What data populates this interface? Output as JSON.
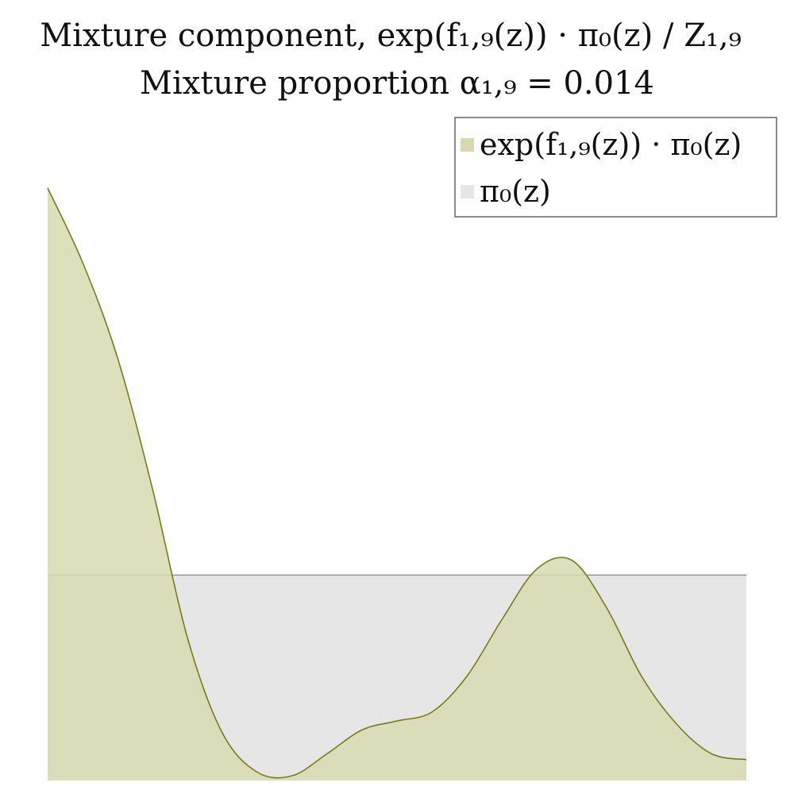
{
  "chart_data": {
    "type": "area",
    "title": "Mixture component, exp(f₁,₉(z)) · π₀(z) / Z₁,₉",
    "subtitle": "Mixture proportion α₁,₉ = 0.014",
    "xlabel": "",
    "ylabel": "",
    "xlim": [
      0,
      1
    ],
    "ylim": [
      0,
      1
    ],
    "grid": false,
    "legend_position": "top-right",
    "series": [
      {
        "name": "exp(f₁,₉(z)) · π₀(z)",
        "color": "#d8d9b0",
        "stroke": "#7a7a1a",
        "x": [
          0,
          0.05,
          0.1,
          0.15,
          0.2,
          0.25,
          0.3,
          0.35,
          0.4,
          0.45,
          0.5,
          0.55,
          0.6,
          0.65,
          0.7,
          0.75,
          0.8,
          0.85,
          0.9,
          0.95,
          1
        ],
        "y": [
          0.0995,
          0.087,
          0.071,
          0.049,
          0.024,
          0.008,
          0.0014,
          0.0008,
          0.0045,
          0.0085,
          0.01,
          0.0115,
          0.0175,
          0.027,
          0.0355,
          0.037,
          0.029,
          0.0175,
          0.0095,
          0.0045,
          0.0035
        ]
      },
      {
        "name": "π₀(z)",
        "color": "#e6e6e6",
        "stroke": "#999999",
        "x": [
          0,
          1
        ],
        "y": [
          0.0345,
          0.0345
        ]
      }
    ]
  },
  "legend": {
    "items": [
      {
        "label": "exp(f₁,₉(z)) · π₀(z)",
        "color": "#d8d9b0"
      },
      {
        "label": "π₀(z)",
        "color": "#e6e6e6"
      }
    ]
  }
}
